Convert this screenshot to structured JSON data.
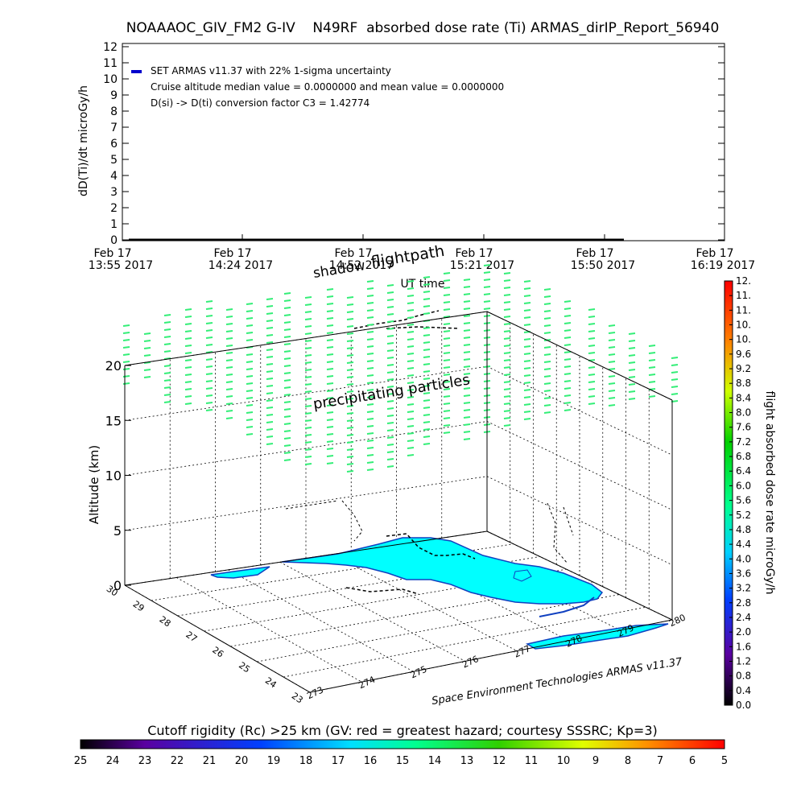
{
  "title": "NOAAAOC_GIV_FM2 G-IV    N49RF  absorbed dose rate (Ti) ARMAS_dirIP_Report_56940",
  "chart_data": [
    {
      "type": "line",
      "ylabel": "dD(Ti)/dt microGy/h",
      "xlabel": "UT time",
      "ylim": [
        0,
        12
      ],
      "yticks": [
        0,
        1,
        2,
        3,
        4,
        5,
        6,
        7,
        8,
        9,
        10,
        11,
        12
      ],
      "xticks": [
        {
          "line1": "Feb 17",
          "line2": "13:55 2017"
        },
        {
          "line1": "Feb 17",
          "line2": "14:24 2017"
        },
        {
          "line1": "Feb 17",
          "line2": "14:52 2017"
        },
        {
          "line1": "Feb 17",
          "line2": "15:21 2017"
        },
        {
          "line1": "Feb 17",
          "line2": "15:50 2017"
        },
        {
          "line1": "Feb 17",
          "line2": "16:19 2017"
        }
      ],
      "series": [
        {
          "name": "SET ARMAS v11.37 with 22% 1-sigma uncertainty",
          "color": "#0000cc",
          "x_start": "13:55",
          "x_end": "15:57",
          "values_constant": 0
        }
      ],
      "annotations": [
        "Cruise altitude median value = 0.0000000 and mean value = 0.0000000",
        "D(si) -> D(ti) conversion factor C3 = 1.42774"
      ]
    },
    {
      "type": "scatter",
      "zlabel": "Altitude (km)",
      "zlim": [
        0,
        20
      ],
      "zticks": [
        "0",
        "5",
        "10",
        "15",
        "20"
      ],
      "lat_ticks": [
        "30",
        "29",
        "28",
        "27",
        "26",
        "25",
        "24",
        "23"
      ],
      "lon_ticks": [
        "273",
        "274",
        "275",
        "276",
        "277",
        "278",
        "279",
        "280"
      ],
      "overlay_labels": [
        "shadow",
        "flightpath",
        "precipitating particles"
      ],
      "colorbar_label": "flight absorbed dose rate microGy/h",
      "colorbar_ticks": [
        "0.0",
        "0.4",
        "0.8",
        "1.2",
        "1.6",
        "2.0",
        "2.4",
        "2.8",
        "3.2",
        "3.6",
        "4.0",
        "4.4",
        "4.8",
        "5.2",
        "5.6",
        "6.0",
        "6.4",
        "6.8",
        "7.2",
        "7.6",
        "8.0",
        "8.4",
        "8.8",
        "9.2",
        "9.6",
        "10.",
        "10.",
        "11.",
        "11.",
        "12."
      ],
      "particle_color": "#33ee77",
      "land_color": "#00ffff",
      "credit": "Space Environment Technologies ARMAS v11.37"
    }
  ],
  "cutoff_bar": {
    "title": "Cutoff rigidity (Rc) >25 km (GV: red = greatest hazard; courtesy SSSRC; Kp=3)",
    "ticks": [
      "25",
      "24",
      "23",
      "22",
      "21",
      "20",
      "19",
      "18",
      "17",
      "16",
      "15",
      "14",
      "13",
      "12",
      "11",
      "10",
      "9",
      "8",
      "7",
      "6",
      "5"
    ]
  }
}
